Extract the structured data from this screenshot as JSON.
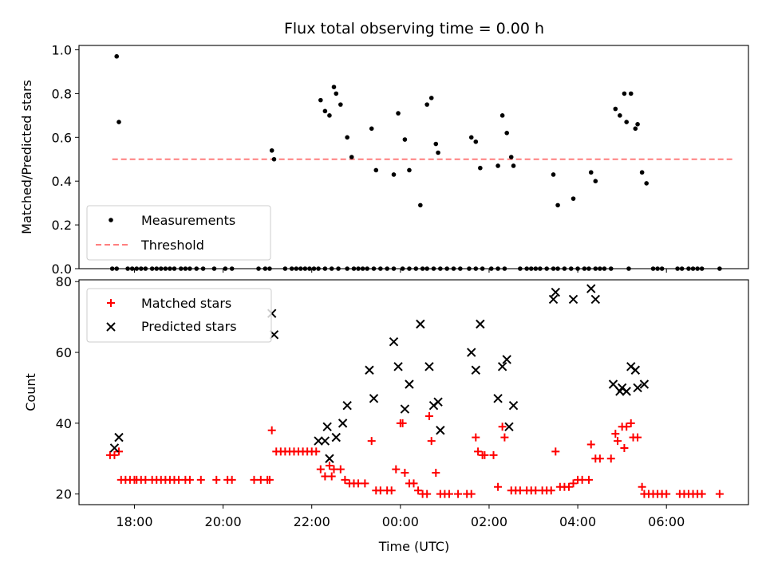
{
  "chart_data": {
    "title": "Flux total observing time = 0.00 h",
    "xlabel": "Time (UTC)",
    "x_ticks": [
      "18:00",
      "20:00",
      "22:00",
      "00:00",
      "02:00",
      "04:00",
      "06:00"
    ],
    "x_range_hours": [
      16.75,
      31.85
    ],
    "panels": [
      {
        "type": "scatter",
        "ylabel": "Matched/Predicted stars",
        "ylim": [
          0,
          1.02
        ],
        "yticks": [
          "0.0",
          "0.2",
          "0.4",
          "0.6",
          "0.8",
          "1.0"
        ],
        "legend_position": "lower-left",
        "legend": [
          "Measurements",
          "Threshold"
        ],
        "colors": {
          "measurements": "#000000",
          "threshold": "#ff7f7f"
        },
        "threshold": {
          "value": 0.5,
          "x_range_hours": [
            17.5,
            31.5
          ]
        },
        "measurements": [
          [
            17.6,
            0.97
          ],
          [
            17.65,
            0.67
          ],
          [
            21.1,
            0.54
          ],
          [
            21.15,
            0.5
          ],
          [
            22.2,
            0.77
          ],
          [
            22.3,
            0.72
          ],
          [
            22.4,
            0.7
          ],
          [
            22.5,
            0.83
          ],
          [
            22.55,
            0.8
          ],
          [
            22.65,
            0.75
          ],
          [
            22.8,
            0.6
          ],
          [
            22.9,
            0.51
          ],
          [
            23.35,
            0.64
          ],
          [
            23.45,
            0.45
          ],
          [
            23.85,
            0.43
          ],
          [
            23.95,
            0.71
          ],
          [
            24.1,
            0.59
          ],
          [
            24.2,
            0.45
          ],
          [
            24.45,
            0.29
          ],
          [
            24.6,
            0.75
          ],
          [
            24.7,
            0.78
          ],
          [
            24.8,
            0.57
          ],
          [
            24.85,
            0.53
          ],
          [
            25.6,
            0.6
          ],
          [
            25.7,
            0.58
          ],
          [
            25.8,
            0.46
          ],
          [
            26.2,
            0.47
          ],
          [
            26.3,
            0.7
          ],
          [
            26.4,
            0.62
          ],
          [
            26.5,
            0.51
          ],
          [
            26.55,
            0.47
          ],
          [
            27.45,
            0.43
          ],
          [
            27.55,
            0.29
          ],
          [
            27.9,
            0.32
          ],
          [
            28.3,
            0.44
          ],
          [
            28.4,
            0.4
          ],
          [
            28.85,
            0.73
          ],
          [
            28.95,
            0.7
          ],
          [
            29.05,
            0.8
          ],
          [
            29.1,
            0.67
          ],
          [
            29.2,
            0.8
          ],
          [
            29.3,
            0.64
          ],
          [
            29.35,
            0.66
          ],
          [
            29.45,
            0.44
          ],
          [
            29.55,
            0.39
          ]
        ],
        "zeros_x": [
          17.5,
          17.6,
          17.85,
          17.95,
          18.05,
          18.15,
          18.25,
          18.4,
          18.5,
          18.6,
          18.7,
          18.8,
          18.9,
          19.05,
          19.15,
          19.25,
          19.4,
          19.55,
          19.8,
          20.05,
          20.2,
          20.8,
          20.95,
          21.05,
          21.4,
          21.55,
          21.65,
          21.75,
          21.85,
          21.95,
          22.05,
          22.15,
          22.3,
          22.45,
          22.6,
          22.8,
          22.95,
          23.05,
          23.15,
          23.25,
          23.4,
          23.55,
          23.7,
          23.85,
          24.05,
          24.2,
          24.35,
          24.5,
          24.6,
          24.75,
          24.9,
          25.05,
          25.2,
          25.35,
          25.55,
          25.7,
          25.85,
          26.05,
          26.2,
          26.35,
          26.7,
          26.85,
          26.95,
          27.05,
          27.15,
          27.3,
          27.45,
          27.55,
          27.7,
          27.85,
          28.0,
          28.15,
          28.25,
          28.4,
          28.5,
          28.6,
          28.75,
          29.15,
          29.7,
          29.8,
          29.9,
          30.25,
          30.35,
          30.5,
          30.6,
          30.7,
          30.8,
          31.2
        ]
      },
      {
        "type": "scatter",
        "ylabel": "Count",
        "ylim": [
          17,
          80.5
        ],
        "yticks": [
          "20",
          "40",
          "60",
          "80"
        ],
        "legend_position": "upper-left",
        "legend": [
          "Matched stars",
          "Predicted stars"
        ],
        "colors": {
          "matched": "#ff0000",
          "predicted": "#000000"
        },
        "matched": [
          [
            17.45,
            31
          ],
          [
            17.55,
            31
          ],
          [
            17.65,
            32
          ],
          [
            17.7,
            24
          ],
          [
            17.8,
            24
          ],
          [
            17.9,
            24
          ],
          [
            18.0,
            24
          ],
          [
            18.05,
            24
          ],
          [
            18.15,
            24
          ],
          [
            18.25,
            24
          ],
          [
            18.4,
            24
          ],
          [
            18.5,
            24
          ],
          [
            18.6,
            24
          ],
          [
            18.7,
            24
          ],
          [
            18.8,
            24
          ],
          [
            18.9,
            24
          ],
          [
            19.0,
            24
          ],
          [
            19.15,
            24
          ],
          [
            19.25,
            24
          ],
          [
            19.5,
            24
          ],
          [
            19.85,
            24
          ],
          [
            20.1,
            24
          ],
          [
            20.2,
            24
          ],
          [
            20.7,
            24
          ],
          [
            20.85,
            24
          ],
          [
            21.0,
            24
          ],
          [
            21.05,
            24
          ],
          [
            21.1,
            38
          ],
          [
            21.2,
            32
          ],
          [
            21.3,
            32
          ],
          [
            21.4,
            32
          ],
          [
            21.5,
            32
          ],
          [
            21.6,
            32
          ],
          [
            21.7,
            32
          ],
          [
            21.8,
            32
          ],
          [
            21.9,
            32
          ],
          [
            22.0,
            32
          ],
          [
            22.1,
            32
          ],
          [
            22.2,
            27
          ],
          [
            22.3,
            25
          ],
          [
            22.4,
            28
          ],
          [
            22.45,
            25
          ],
          [
            22.5,
            27
          ],
          [
            22.65,
            27
          ],
          [
            22.75,
            24
          ],
          [
            22.85,
            23
          ],
          [
            22.95,
            23
          ],
          [
            23.05,
            23
          ],
          [
            23.2,
            23
          ],
          [
            23.35,
            35
          ],
          [
            23.45,
            21
          ],
          [
            23.55,
            21
          ],
          [
            23.7,
            21
          ],
          [
            23.8,
            21
          ],
          [
            23.9,
            27
          ],
          [
            24.0,
            40
          ],
          [
            24.05,
            40
          ],
          [
            24.1,
            26
          ],
          [
            24.2,
            23
          ],
          [
            24.3,
            23
          ],
          [
            24.4,
            21
          ],
          [
            24.5,
            20
          ],
          [
            24.6,
            20
          ],
          [
            24.65,
            42
          ],
          [
            24.7,
            35
          ],
          [
            24.8,
            26
          ],
          [
            24.9,
            20
          ],
          [
            25.0,
            20
          ],
          [
            25.1,
            20
          ],
          [
            25.3,
            20
          ],
          [
            25.5,
            20
          ],
          [
            25.6,
            20
          ],
          [
            25.7,
            36
          ],
          [
            25.75,
            32
          ],
          [
            25.85,
            31
          ],
          [
            25.9,
            31
          ],
          [
            26.1,
            31
          ],
          [
            26.2,
            22
          ],
          [
            26.3,
            39
          ],
          [
            26.35,
            36
          ],
          [
            26.5,
            21
          ],
          [
            26.6,
            21
          ],
          [
            26.7,
            21
          ],
          [
            26.85,
            21
          ],
          [
            26.95,
            21
          ],
          [
            27.05,
            21
          ],
          [
            27.2,
            21
          ],
          [
            27.3,
            21
          ],
          [
            27.4,
            21
          ],
          [
            27.5,
            32
          ],
          [
            27.6,
            22
          ],
          [
            27.7,
            22
          ],
          [
            27.8,
            22
          ],
          [
            27.9,
            23
          ],
          [
            28.0,
            24
          ],
          [
            28.1,
            24
          ],
          [
            28.25,
            24
          ],
          [
            28.3,
            34
          ],
          [
            28.4,
            30
          ],
          [
            28.5,
            30
          ],
          [
            28.75,
            30
          ],
          [
            28.85,
            37
          ],
          [
            28.9,
            35
          ],
          [
            29.0,
            39
          ],
          [
            29.05,
            33
          ],
          [
            29.1,
            39
          ],
          [
            29.2,
            40
          ],
          [
            29.25,
            36
          ],
          [
            29.35,
            36
          ],
          [
            29.45,
            22
          ],
          [
            29.5,
            20
          ],
          [
            29.6,
            20
          ],
          [
            29.7,
            20
          ],
          [
            29.8,
            20
          ],
          [
            29.9,
            20
          ],
          [
            30.0,
            20
          ],
          [
            30.3,
            20
          ],
          [
            30.4,
            20
          ],
          [
            30.5,
            20
          ],
          [
            30.6,
            20
          ],
          [
            30.7,
            20
          ],
          [
            30.8,
            20
          ],
          [
            31.2,
            20
          ]
        ],
        "predicted": [
          [
            17.55,
            33
          ],
          [
            17.65,
            36
          ],
          [
            21.1,
            71
          ],
          [
            21.15,
            65
          ],
          [
            22.15,
            35
          ],
          [
            22.3,
            35
          ],
          [
            22.35,
            39
          ],
          [
            22.4,
            30
          ],
          [
            22.55,
            36
          ],
          [
            22.7,
            40
          ],
          [
            22.8,
            45
          ],
          [
            23.3,
            55
          ],
          [
            23.4,
            47
          ],
          [
            23.85,
            63
          ],
          [
            23.95,
            56
          ],
          [
            24.1,
            44
          ],
          [
            24.2,
            51
          ],
          [
            24.45,
            68
          ],
          [
            24.65,
            56
          ],
          [
            24.75,
            45
          ],
          [
            24.85,
            46
          ],
          [
            24.9,
            38
          ],
          [
            25.6,
            60
          ],
          [
            25.7,
            55
          ],
          [
            25.8,
            68
          ],
          [
            26.2,
            47
          ],
          [
            26.3,
            56
          ],
          [
            26.4,
            58
          ],
          [
            26.45,
            39
          ],
          [
            26.55,
            45
          ],
          [
            27.45,
            75
          ],
          [
            27.5,
            77
          ],
          [
            27.9,
            75
          ],
          [
            28.3,
            78
          ],
          [
            28.4,
            75
          ],
          [
            28.8,
            51
          ],
          [
            28.95,
            49
          ],
          [
            29.0,
            50
          ],
          [
            29.1,
            49
          ],
          [
            29.2,
            56
          ],
          [
            29.3,
            55
          ],
          [
            29.35,
            50
          ],
          [
            29.5,
            51
          ]
        ]
      }
    ]
  }
}
